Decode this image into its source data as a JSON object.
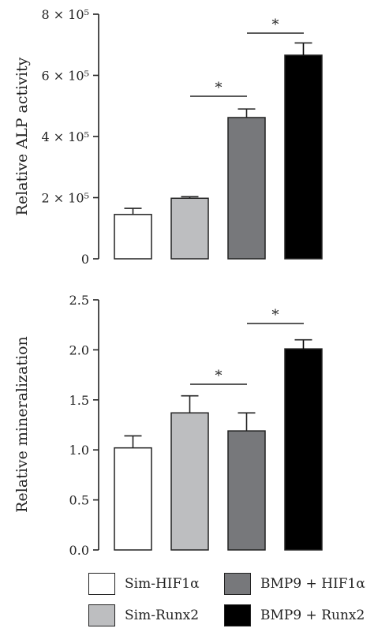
{
  "chart_data": [
    {
      "type": "bar",
      "ylabel": "Relative ALP activity",
      "ylim": [
        0,
        800000
      ],
      "yticks": [
        0,
        200000,
        400000,
        600000,
        800000
      ],
      "ytick_labels": [
        "0",
        "2 × 10⁵",
        "4 × 10⁵",
        "6 × 10⁵",
        "8 × 10⁵"
      ],
      "categories": [
        "Sim-HIF1α",
        "Sim-Runx2",
        "BMP9 + HIF1α",
        "BMP9 + Runx2"
      ],
      "values": [
        145000,
        198000,
        462000,
        666000
      ],
      "errors": [
        20000,
        5000,
        28000,
        40000
      ],
      "colors": [
        "#ffffff",
        "#bdbec0",
        "#77787b",
        "#000000"
      ],
      "significance": [
        {
          "from": 1,
          "to": 2,
          "label": "*"
        },
        {
          "from": 2,
          "to": 3,
          "label": "*"
        }
      ]
    },
    {
      "type": "bar",
      "ylabel": "Relative mineralization",
      "ylim": [
        0,
        2.5
      ],
      "yticks": [
        0,
        0.5,
        1.0,
        1.5,
        2.0,
        2.5
      ],
      "ytick_labels": [
        "0.0",
        "0.5",
        "1.0",
        "1.5",
        "2.0",
        "2.5"
      ],
      "categories": [
        "Sim-HIF1α",
        "Sim-Runx2",
        "BMP9 + HIF1α",
        "BMP9 + Runx2"
      ],
      "values": [
        1.02,
        1.37,
        1.19,
        2.01
      ],
      "errors": [
        0.12,
        0.17,
        0.18,
        0.09
      ],
      "colors": [
        "#ffffff",
        "#bdbec0",
        "#77787b",
        "#000000"
      ],
      "significance": [
        {
          "from": 1,
          "to": 2,
          "label": "*"
        },
        {
          "from": 2,
          "to": 3,
          "label": "*"
        }
      ]
    }
  ],
  "legend": {
    "items": [
      {
        "label": "Sim-HIF1α",
        "color": "#ffffff"
      },
      {
        "label": "BMP9 + HIF1α",
        "color": "#77787b"
      },
      {
        "label": "Sim-Runx2",
        "color": "#bdbec0"
      },
      {
        "label": "BMP9 + Runx2",
        "color": "#000000"
      }
    ]
  }
}
